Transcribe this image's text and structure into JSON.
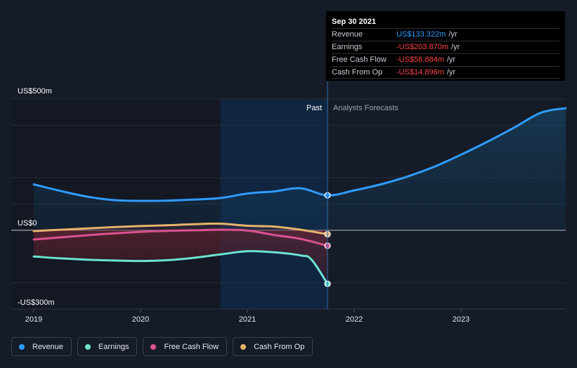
{
  "tooltip": {
    "date": "Sep 30 2021",
    "rows": [
      {
        "label": "Revenue",
        "value": "US$133.322m",
        "unit": "/yr",
        "color": "#2f9cff"
      },
      {
        "label": "Earnings",
        "value": "-US$203.870m",
        "unit": "/yr",
        "color": "#ff4545"
      },
      {
        "label": "Free Cash Flow",
        "value": "-US$58.884m",
        "unit": "/yr",
        "color": "#ff4545"
      },
      {
        "label": "Cash From Op",
        "value": "-US$14.896m",
        "unit": "/yr",
        "color": "#ff4545"
      }
    ]
  },
  "legend": [
    {
      "label": "Revenue",
      "color": "#2f9cff"
    },
    {
      "label": "Earnings",
      "color": "#6be3d2"
    },
    {
      "label": "Free Cash Flow",
      "color": "#d9528f"
    },
    {
      "label": "Cash From Op",
      "color": "#e8b36c"
    }
  ],
  "chart_data": {
    "type": "line",
    "title": "",
    "y_axis_labels": [
      "US$500m",
      "US$0",
      "-US$300m"
    ],
    "ylim": [
      -300,
      500
    ],
    "xlim": [
      2019.0,
      2023.98
    ],
    "x_ticks": [
      2019,
      2020,
      2021,
      2022,
      2023
    ],
    "x_tick_labels": [
      "2019",
      "2020",
      "2021",
      "2022",
      "2023"
    ],
    "past_label": "Past",
    "forecast_label": "Analysts Forecasts",
    "divider_x": 2021.75,
    "highlight_start_x": 2020.75,
    "series": [
      {
        "name": "Revenue",
        "color": "#2f9cff",
        "x": [
          2019.0,
          2019.25,
          2019.5,
          2019.75,
          2020.0,
          2020.25,
          2020.5,
          2020.75,
          2021.0,
          2021.25,
          2021.5,
          2021.75,
          2022.0,
          2022.25,
          2022.5,
          2022.75,
          2023.0,
          2023.25,
          2023.5,
          2023.75,
          2023.98
        ],
        "values": [
          175,
          150,
          128,
          115,
          112,
          113,
          117,
          123,
          140,
          148,
          160,
          133,
          152,
          175,
          205,
          242,
          288,
          338,
          392,
          448,
          465
        ]
      },
      {
        "name": "Earnings",
        "color": "#6be3d2",
        "x": [
          2019.0,
          2019.25,
          2019.5,
          2019.75,
          2020.0,
          2020.25,
          2020.5,
          2020.75,
          2021.0,
          2021.25,
          2021.5,
          2021.6,
          2021.75
        ],
        "values": [
          -100,
          -107,
          -112,
          -115,
          -117,
          -114,
          -105,
          -92,
          -80,
          -84,
          -96,
          -112,
          -204
        ]
      },
      {
        "name": "Free Cash Flow",
        "color": "#d9528f",
        "x": [
          2019.0,
          2019.25,
          2019.5,
          2019.75,
          2020.0,
          2020.25,
          2020.5,
          2020.75,
          2021.0,
          2021.25,
          2021.5,
          2021.75
        ],
        "values": [
          -35,
          -27,
          -19,
          -12,
          -6,
          -2,
          0,
          2,
          -1,
          -18,
          -33,
          -59
        ]
      },
      {
        "name": "Cash From Op",
        "color": "#e8b36c",
        "x": [
          2019.0,
          2019.25,
          2019.5,
          2019.75,
          2020.0,
          2020.25,
          2020.5,
          2020.75,
          2021.0,
          2021.25,
          2021.5,
          2021.75
        ],
        "values": [
          -3,
          2,
          7,
          12,
          16,
          19,
          23,
          25,
          17,
          14,
          2,
          -15
        ]
      }
    ]
  }
}
